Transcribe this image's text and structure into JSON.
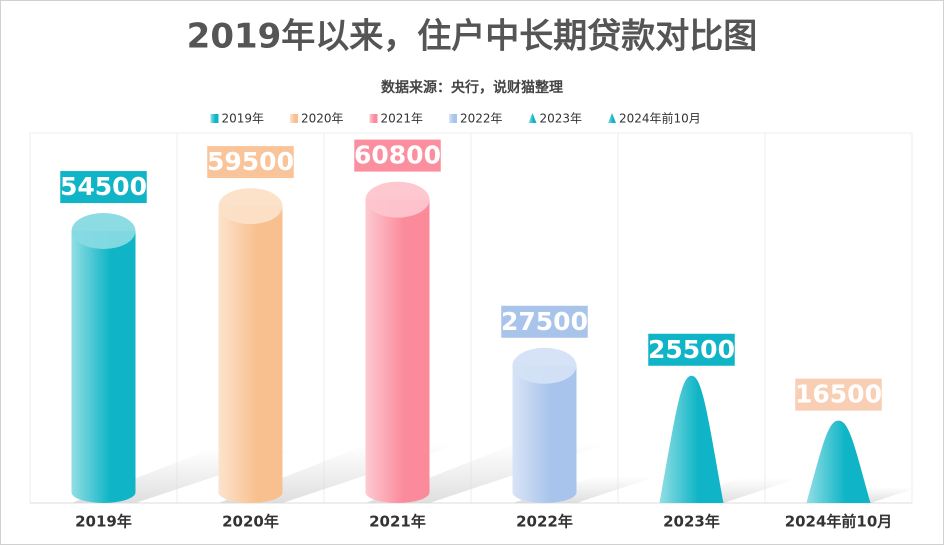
{
  "chart_data": {
    "type": "bar",
    "title": "2019年以来，住户中长期贷款对比图",
    "subtitle": "数据来源：央行，说财猫整理",
    "categories": [
      "2019年",
      "2020年",
      "2021年",
      "2022年",
      "2023年",
      "2024年前10月"
    ],
    "values": [
      54500,
      59500,
      60800,
      27500,
      25500,
      16500
    ],
    "colors": [
      "#0fb5c6",
      "#f9c08f",
      "#fb8a9b",
      "#a8c3ec",
      "#0fb5c6",
      "#0fb5c6"
    ],
    "label_colors": [
      "#0fb5c6",
      "#f9c49a",
      "#fb8fa0",
      "#a9c4ea",
      "#0fb5c6",
      "#f8cfb4"
    ],
    "shapes": [
      "cylinder",
      "cylinder",
      "cylinder",
      "cylinder",
      "cone",
      "cone"
    ]
  }
}
